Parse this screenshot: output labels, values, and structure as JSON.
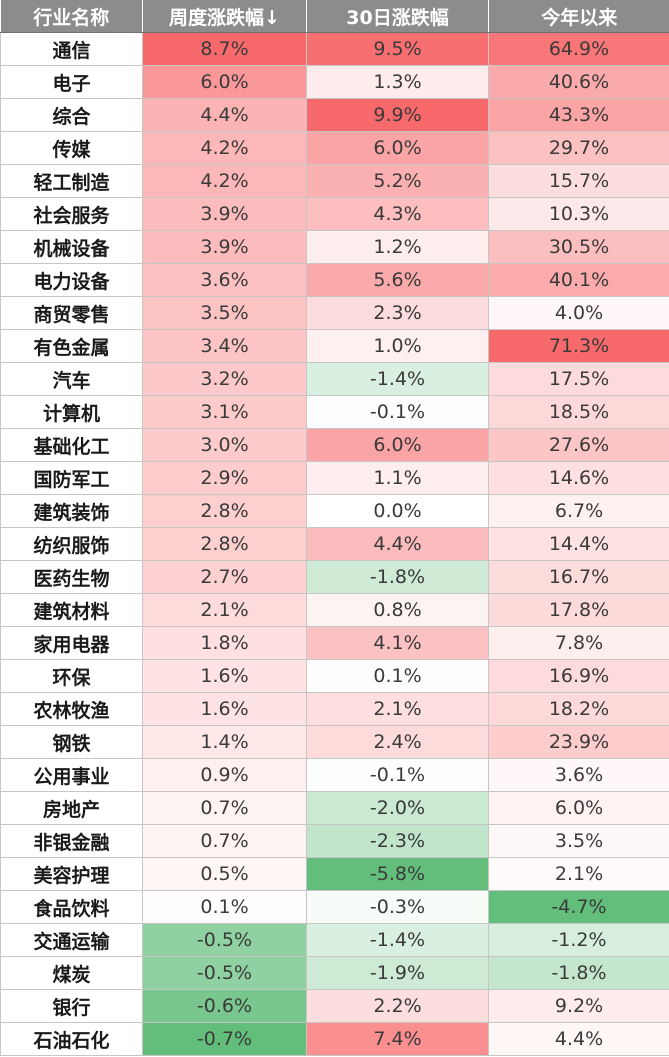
{
  "chart_data": {
    "type": "table",
    "columns": [
      "行业名称",
      "周度涨跌幅↓",
      "30日涨跌幅",
      "今年以来"
    ],
    "rows": [
      {
        "industry": "通信",
        "week": "8.7%",
        "d30": "9.5%",
        "ytd": "64.9%"
      },
      {
        "industry": "电子",
        "week": "6.0%",
        "d30": "1.3%",
        "ytd": "40.6%"
      },
      {
        "industry": "综合",
        "week": "4.4%",
        "d30": "9.9%",
        "ytd": "43.3%"
      },
      {
        "industry": "传媒",
        "week": "4.2%",
        "d30": "6.0%",
        "ytd": "29.7%"
      },
      {
        "industry": "轻工制造",
        "week": "4.2%",
        "d30": "5.2%",
        "ytd": "15.7%"
      },
      {
        "industry": "社会服务",
        "week": "3.9%",
        "d30": "4.3%",
        "ytd": "10.3%"
      },
      {
        "industry": "机械设备",
        "week": "3.9%",
        "d30": "1.2%",
        "ytd": "30.5%"
      },
      {
        "industry": "电力设备",
        "week": "3.6%",
        "d30": "5.6%",
        "ytd": "40.1%"
      },
      {
        "industry": "商贸零售",
        "week": "3.5%",
        "d30": "2.3%",
        "ytd": "4.0%"
      },
      {
        "industry": "有色金属",
        "week": "3.4%",
        "d30": "1.0%",
        "ytd": "71.3%"
      },
      {
        "industry": "汽车",
        "week": "3.2%",
        "d30": "-1.4%",
        "ytd": "17.5%"
      },
      {
        "industry": "计算机",
        "week": "3.1%",
        "d30": "-0.1%",
        "ytd": "18.5%"
      },
      {
        "industry": "基础化工",
        "week": "3.0%",
        "d30": "6.0%",
        "ytd": "27.6%"
      },
      {
        "industry": "国防军工",
        "week": "2.9%",
        "d30": "1.1%",
        "ytd": "14.6%"
      },
      {
        "industry": "建筑装饰",
        "week": "2.8%",
        "d30": "0.0%",
        "ytd": "6.7%"
      },
      {
        "industry": "纺织服饰",
        "week": "2.8%",
        "d30": "4.4%",
        "ytd": "14.4%"
      },
      {
        "industry": "医药生物",
        "week": "2.7%",
        "d30": "-1.8%",
        "ytd": "16.7%"
      },
      {
        "industry": "建筑材料",
        "week": "2.1%",
        "d30": "0.8%",
        "ytd": "17.8%"
      },
      {
        "industry": "家用电器",
        "week": "1.8%",
        "d30": "4.1%",
        "ytd": "7.8%"
      },
      {
        "industry": "环保",
        "week": "1.6%",
        "d30": "0.1%",
        "ytd": "16.9%"
      },
      {
        "industry": "农林牧渔",
        "week": "1.6%",
        "d30": "2.1%",
        "ytd": "18.2%"
      },
      {
        "industry": "钢铁",
        "week": "1.4%",
        "d30": "2.4%",
        "ytd": "23.9%"
      },
      {
        "industry": "公用事业",
        "week": "0.9%",
        "d30": "-0.1%",
        "ytd": "3.6%"
      },
      {
        "industry": "房地产",
        "week": "0.7%",
        "d30": "-2.0%",
        "ytd": "6.0%"
      },
      {
        "industry": "非银金融",
        "week": "0.7%",
        "d30": "-2.3%",
        "ytd": "3.5%"
      },
      {
        "industry": "美容护理",
        "week": "0.5%",
        "d30": "-5.8%",
        "ytd": "2.1%"
      },
      {
        "industry": "食品饮料",
        "week": "0.1%",
        "d30": "-0.3%",
        "ytd": "-4.7%"
      },
      {
        "industry": "交通运输",
        "week": "-0.5%",
        "d30": "-1.4%",
        "ytd": "-1.2%"
      },
      {
        "industry": "煤炭",
        "week": "-0.5%",
        "d30": "-1.9%",
        "ytd": "-1.8%"
      },
      {
        "industry": "银行",
        "week": "-0.6%",
        "d30": "2.2%",
        "ytd": "9.2%"
      },
      {
        "industry": "石油石化",
        "week": "-0.7%",
        "d30": "7.4%",
        "ytd": "4.4%"
      }
    ],
    "colors": {
      "header_bg": "#8c8c8c",
      "positive_max": "#f8696b",
      "negative_max": "#63be7b",
      "neutral": "#ffffff"
    }
  }
}
